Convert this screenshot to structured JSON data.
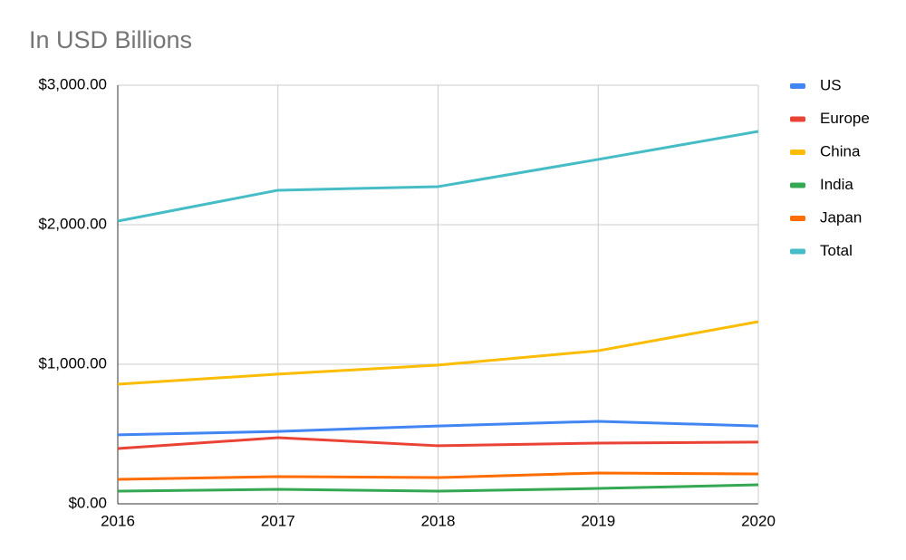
{
  "chart_data": {
    "type": "line",
    "title": "In USD Billions",
    "x": [
      2016,
      2017,
      2018,
      2019,
      2020
    ],
    "xlim": [
      2016,
      2020
    ],
    "xticks": [
      2016,
      2017,
      2018,
      2019,
      2020
    ],
    "ylim": [
      0,
      3000
    ],
    "yticks": [
      {
        "value": 0,
        "label": "$0.00"
      },
      {
        "value": 1000,
        "label": "$1,000.00"
      },
      {
        "value": 2000,
        "label": "$2,000.00"
      },
      {
        "value": 3000,
        "label": "$3,000.00"
      }
    ],
    "grid": true,
    "legend": "right",
    "series": [
      {
        "name": "US",
        "color": "#4285f4",
        "values": [
          494,
          519,
          558,
          591,
          558
        ]
      },
      {
        "name": "Europe",
        "color": "#ea4335",
        "values": [
          396,
          474,
          416,
          435,
          442
        ]
      },
      {
        "name": "China",
        "color": "#fbbc04",
        "values": [
          857,
          929,
          994,
          1097,
          1305
        ]
      },
      {
        "name": "India",
        "color": "#34a853",
        "values": [
          91,
          104,
          91,
          110,
          136
        ]
      },
      {
        "name": "Japan",
        "color": "#ff6d01",
        "values": [
          175,
          195,
          188,
          221,
          214
        ]
      },
      {
        "name": "Total",
        "color": "#46bdc6",
        "values": [
          2026,
          2247,
          2273,
          2468,
          2669
        ]
      }
    ]
  }
}
